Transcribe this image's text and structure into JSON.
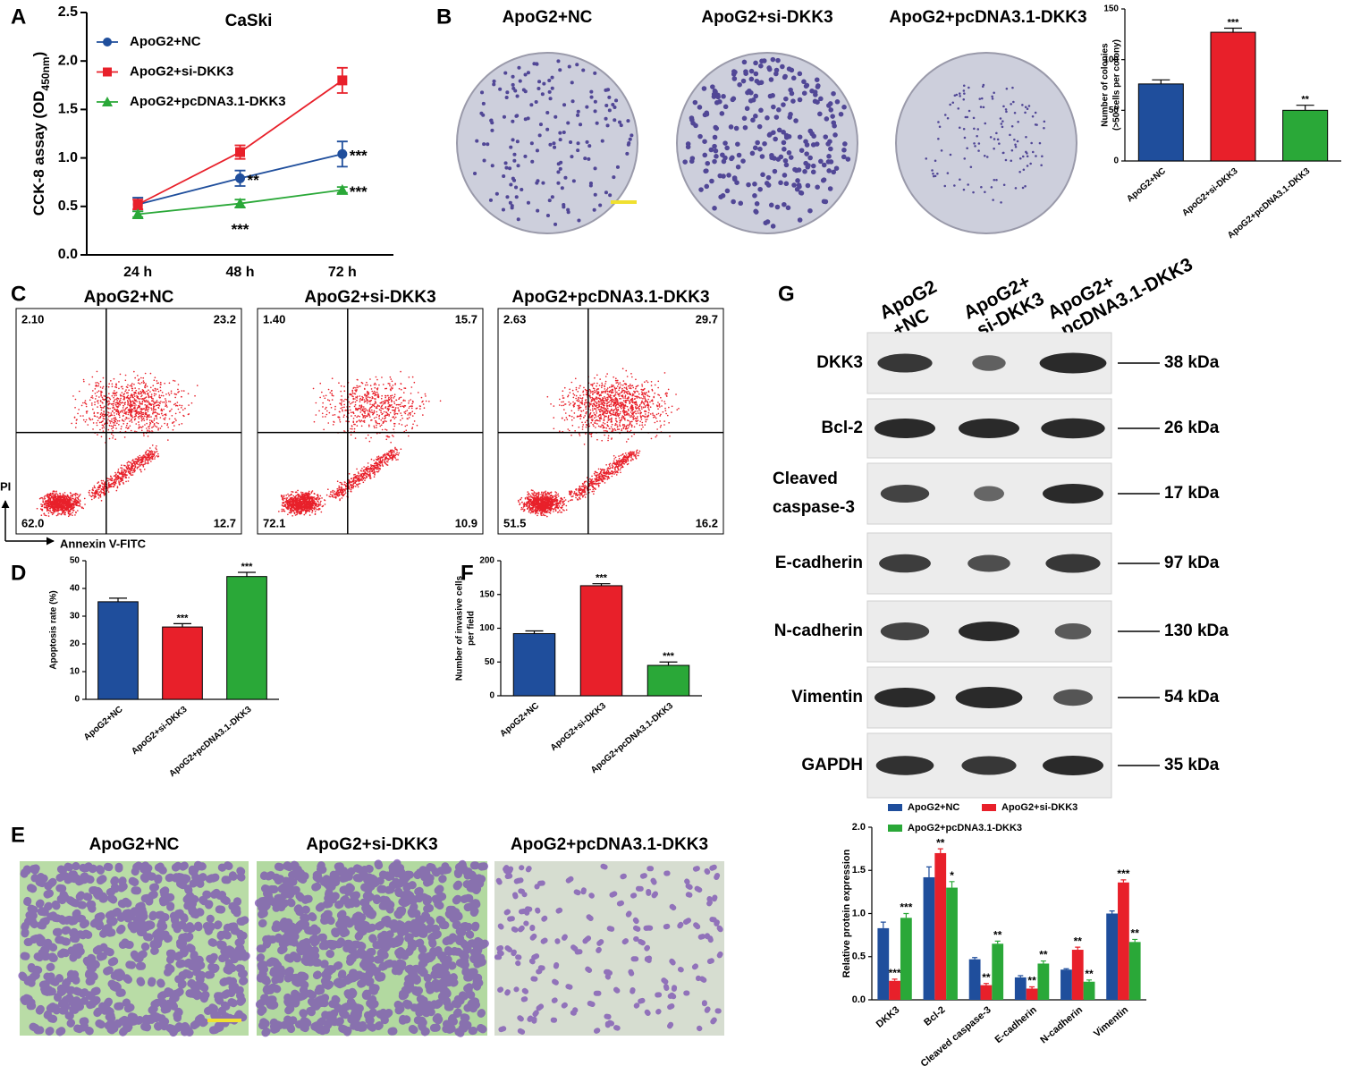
{
  "panel_labels": [
    "A",
    "B",
    "C",
    "D",
    "E",
    "F",
    "G"
  ],
  "colony_titles": [
    "ApoG2+NC",
    "ApoG2+si-DKK3",
    "ApoG2+pcDNA3.1-DKK3"
  ],
  "flow": {
    "ylabel": "PI",
    "xlabel": "Annexin V-FITC",
    "plots": [
      {
        "title": "ApoG2+NC",
        "quadrants": [
          "2.10",
          "23.2",
          "62.0",
          "12.7"
        ]
      },
      {
        "title": "ApoG2+si-DKK3",
        "quadrants": [
          "1.40",
          "15.7",
          "72.1",
          "10.9"
        ]
      },
      {
        "title": "ApoG2+pcDNA3.1-DKK3",
        "quadrants": [
          "2.63",
          "29.7",
          "51.5",
          "16.2"
        ]
      }
    ]
  },
  "transwell_titles": [
    "ApoG2+NC",
    "ApoG2+si-DKK3",
    "ApoG2+pcDNA3.1-DKK3"
  ],
  "blot": {
    "lanes": [
      [
        "ApoG2",
        "+NC"
      ],
      [
        "ApoG2+",
        "si-DKK3"
      ],
      [
        "ApoG2+",
        "pcDNA3.1-DKK3"
      ]
    ],
    "rows": [
      {
        "label": [
          "DKK3"
        ],
        "size": "38 kDa"
      },
      {
        "label": [
          "Bcl-2"
        ],
        "size": "26 kDa"
      },
      {
        "label": [
          "Cleaved",
          "caspase-3"
        ],
        "size": "17 kDa"
      },
      {
        "label": [
          "E-cadherin"
        ],
        "size": "97 kDa"
      },
      {
        "label": [
          "N-cadherin"
        ],
        "size": "130 kDa"
      },
      {
        "label": [
          "Vimentin"
        ],
        "size": "54 kDa"
      },
      {
        "label": [
          "GAPDH"
        ],
        "size": "35 kDa"
      }
    ]
  },
  "chart_data": [
    {
      "type": "line",
      "title": "CaSki",
      "ylabel": [
        "CCK-8 assay (OD",
        "450nm",
        ")"
      ],
      "categories": [
        "24 h",
        "48 h",
        "72 h"
      ],
      "ylim": [
        0,
        2.5
      ],
      "yticks": [
        {
          "value": 0,
          "label": "0.0"
        },
        0.5,
        {
          "value": 1,
          "label": "1.0"
        },
        1.5,
        {
          "value": 2,
          "label": "2.0"
        },
        2.5
      ],
      "legend": "upper left",
      "series": [
        {
          "name": "ApoG2+NC",
          "color": "#1f4e9c",
          "marker": "circle",
          "values": [
            0.52,
            0.79,
            1.04
          ],
          "errors": [
            0.07,
            0.08,
            0.13
          ],
          "stars": [
            null,
            "**",
            "***"
          ]
        },
        {
          "name": "ApoG2+si-DKK3",
          "color": "#e8202a",
          "marker": "square",
          "values": [
            0.52,
            1.06,
            1.8
          ],
          "errors": [
            0.05,
            0.07,
            0.13
          ],
          "stars": [
            null,
            null,
            null
          ]
        },
        {
          "name": "ApoG2+pcDNA3.1-DKK3",
          "color": "#2aa838",
          "marker": "triangle",
          "values": [
            0.42,
            0.53,
            0.67
          ],
          "errors": [
            0.03,
            0.04,
            0.03
          ],
          "stars": [
            null,
            "***",
            "***"
          ]
        }
      ]
    },
    {
      "type": "bar",
      "ylabel": [
        "Number of colonies",
        "(>50 cells per colony)"
      ],
      "categories": [
        "ApoG2+NC",
        "ApoG2+si-DKK3",
        "ApoG2+pcDNA3.1-DKK3"
      ],
      "values": [
        76,
        127,
        50
      ],
      "errors": [
        4,
        4,
        5
      ],
      "stars": [
        null,
        "***",
        "**"
      ],
      "colors": [
        "#1f4e9c",
        "#e8202a",
        "#2aa838"
      ],
      "ylim": [
        0,
        150
      ],
      "yticks": [
        0,
        50,
        100,
        150
      ]
    },
    {
      "type": "bar",
      "ylabel": [
        "Apoptosis rate (%)"
      ],
      "categories": [
        "ApoG2+NC",
        "ApoG2+si-DKK3",
        "ApoG2+pcDNA3.1-DKK3"
      ],
      "values": [
        35.2,
        26.1,
        44.3
      ],
      "errors": [
        1.3,
        1.2,
        1.5
      ],
      "stars": [
        null,
        "***",
        "***"
      ],
      "colors": [
        "#1f4e9c",
        "#e8202a",
        "#2aa838"
      ],
      "ylim": [
        0,
        50
      ],
      "yticks": [
        0,
        10,
        20,
        30,
        40,
        50
      ]
    },
    {
      "type": "bar",
      "ylabel": [
        "Number of invasive cells",
        "per field"
      ],
      "categories": [
        "ApoG2+NC",
        "ApoG2+si-DKK3",
        "ApoG2+pcDNA3.1-DKK3"
      ],
      "values": [
        92,
        163,
        45
      ],
      "errors": [
        4,
        3,
        5
      ],
      "stars": [
        null,
        "***",
        "***"
      ],
      "colors": [
        "#1f4e9c",
        "#e8202a",
        "#2aa838"
      ],
      "ylim": [
        0,
        200
      ],
      "yticks": [
        0,
        50,
        100,
        150,
        200
      ]
    },
    {
      "type": "bar",
      "ylabel": [
        "Relative protein expression"
      ],
      "categories": [
        "DKK3",
        "Bcl-2",
        "Cleaved caspase-3",
        "E-cadherin",
        "N-cadherin",
        "Vimentin"
      ],
      "ylim": [
        0,
        2
      ],
      "yticks": [
        {
          "value": 0,
          "label": "0.0"
        },
        0.5,
        {
          "value": 1,
          "label": "1.0"
        },
        1.5,
        {
          "value": 2,
          "label": "2.0"
        }
      ],
      "legend": "top",
      "series": [
        {
          "name": "ApoG2+NC",
          "color": "#1f4e9c",
          "values": [
            0.83,
            1.42,
            0.47,
            0.26,
            0.35,
            1.0
          ],
          "errors": [
            0.07,
            0.12,
            0.02,
            0.02,
            0.01,
            0.03
          ],
          "stars": [
            null,
            null,
            null,
            null,
            null,
            null
          ]
        },
        {
          "name": "ApoG2+si-DKK3",
          "color": "#e8202a",
          "values": [
            0.22,
            1.7,
            0.17,
            0.13,
            0.58,
            1.36
          ],
          "errors": [
            0.02,
            0.05,
            0.02,
            0.02,
            0.03,
            0.03
          ],
          "stars": [
            "***",
            "**",
            "**",
            "**",
            "**",
            "***"
          ]
        },
        {
          "name": "ApoG2+pcDNA3.1-DKK3",
          "color": "#2aa838",
          "values": [
            0.95,
            1.3,
            0.65,
            0.42,
            0.21,
            0.67
          ],
          "errors": [
            0.05,
            0.07,
            0.03,
            0.03,
            0.02,
            0.03
          ],
          "stars": [
            "***",
            "*",
            "**",
            "**",
            "**",
            "**"
          ]
        }
      ]
    }
  ]
}
